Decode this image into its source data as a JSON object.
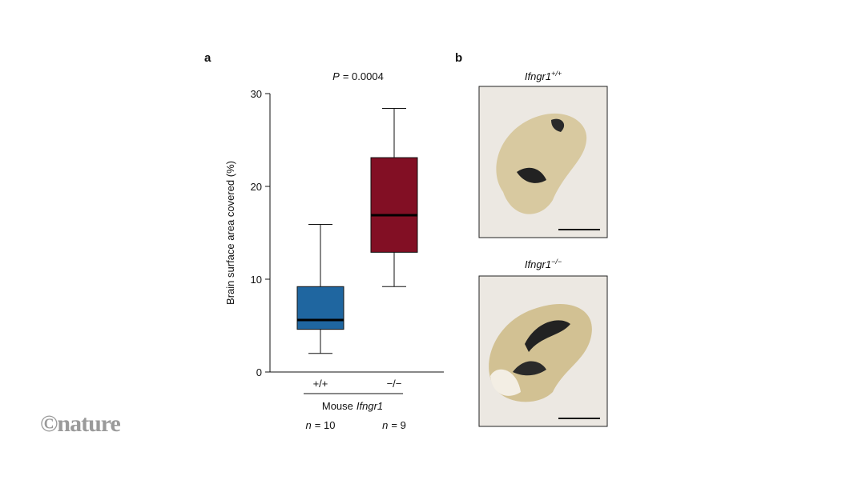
{
  "chart_data": {
    "type": "box",
    "panel_label": "a",
    "annotation": {
      "italic": "P",
      "text": "= 0.0004"
    },
    "ylabel": "Brain surface area covered (%)",
    "xlabel": {
      "text": "Mouse",
      "italic": "Ifngr1"
    },
    "categories": [
      "+/+",
      "−/−"
    ],
    "sample_sizes": [
      {
        "italic": "n",
        "text": "= 10"
      },
      {
        "italic": "n",
        "text": "= 9"
      }
    ],
    "boxes": [
      {
        "whislo": 2.0,
        "q1": 4.6,
        "med": 5.6,
        "q3": 9.2,
        "whishi": 15.9,
        "color": "#1f66a0"
      },
      {
        "whislo": 9.2,
        "q1": 12.9,
        "med": 16.9,
        "q3": 23.1,
        "whishi": 28.4,
        "color": "#820f24"
      }
    ],
    "ylim": [
      0,
      30
    ],
    "yticks": [
      0,
      10,
      20,
      30
    ]
  },
  "images": {
    "panel_label": "b",
    "photos": [
      {
        "gene": "Ifngr1",
        "genotype": "+/+"
      },
      {
        "gene": "Ifngr1",
        "genotype": "−/−"
      }
    ]
  },
  "footer": {
    "logo": "©nature"
  }
}
